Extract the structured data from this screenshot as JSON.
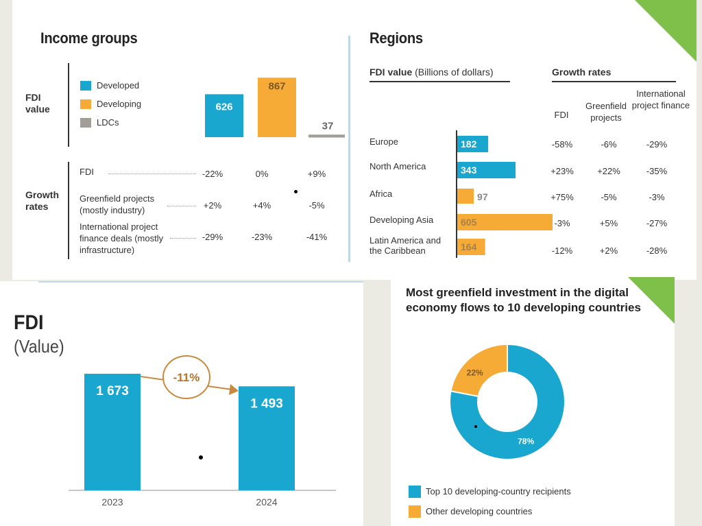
{
  "colors": {
    "developed": "#1aa7cf",
    "developing": "#f5ab35",
    "ldc": "#a29e97",
    "accent_green": "#7fc04a",
    "arrow": "#c98a3f"
  },
  "income": {
    "title": "Income groups",
    "fdi_value_label": "FDI value",
    "growth_rates_label": "Growth rates",
    "legend": [
      "Developed",
      "Developing",
      "LDCs"
    ],
    "rows": [
      {
        "label": "FDI",
        "values": [
          "-22%",
          "0%",
          "+9%"
        ]
      },
      {
        "label": "Greenfield projects (mostly industry)",
        "values": [
          "+2%",
          "+4%",
          "-5%"
        ]
      },
      {
        "label": "International project finance deals (mostly infrastructure)",
        "values": [
          "-29%",
          "-23%",
          "-41%"
        ]
      }
    ]
  },
  "regions": {
    "title": "Regions",
    "fdi_header_bold": "FDI value",
    "fdi_header_unit": "(Billions of dollars)",
    "growth_header": "Growth rates",
    "col_fdi": "FDI",
    "col_greenfield": "Greenfield projects",
    "col_ipf": "International project finance",
    "rows": [
      {
        "name": "Europe",
        "g": [
          "-58%",
          "-6%",
          "-29%"
        ]
      },
      {
        "name": "North America",
        "g": [
          "+23%",
          "+22%",
          "-35%"
        ]
      },
      {
        "name": "Africa",
        "g": [
          "+75%",
          "-5%",
          "-3%"
        ]
      },
      {
        "name": "Developing Asia",
        "g": [
          "-3%",
          "+5%",
          "-27%"
        ]
      },
      {
        "name": "Latin America and the Caribbean",
        "g": [
          "-12%",
          "+2%",
          "-28%"
        ]
      }
    ]
  },
  "fdi_total": {
    "title": "FDI",
    "subtitle": "(Value)",
    "change_label": "-11%"
  },
  "donut": {
    "title": "Most greenfield investment in the digital economy flows to 10 developing countries"
  },
  "chart_data": [
    {
      "type": "bar",
      "title": "Income groups — FDI value",
      "categories": [
        "Developed",
        "Developing",
        "LDCs"
      ],
      "values": [
        626,
        867,
        37
      ],
      "value_labels": [
        "626",
        "867",
        "37"
      ]
    },
    {
      "type": "bar",
      "orientation": "horizontal",
      "title": "Regions — FDI value (Billions of dollars)",
      "categories": [
        "Europe",
        "North America",
        "Africa",
        "Developing Asia",
        "Latin America and the Caribbean"
      ],
      "values": [
        182,
        343,
        97,
        605,
        164
      ],
      "value_labels": [
        "182",
        "343",
        "97",
        "605",
        "164"
      ],
      "groups": [
        "developed",
        "developed",
        "developing",
        "developing",
        "developing"
      ]
    },
    {
      "type": "bar",
      "title": "FDI (Value)",
      "categories": [
        "2023",
        "2024"
      ],
      "values": [
        1673,
        1493
      ],
      "value_labels": [
        "1 673",
        "1 493"
      ],
      "annotation": "-11%"
    },
    {
      "type": "pie",
      "title": "Most greenfield investment in the digital economy flows to 10 developing countries",
      "labels": [
        "Top 10 developing-country recipients",
        "Other developing countries"
      ],
      "values": [
        78,
        22
      ],
      "value_labels": [
        "78%",
        "22%"
      ]
    }
  ]
}
